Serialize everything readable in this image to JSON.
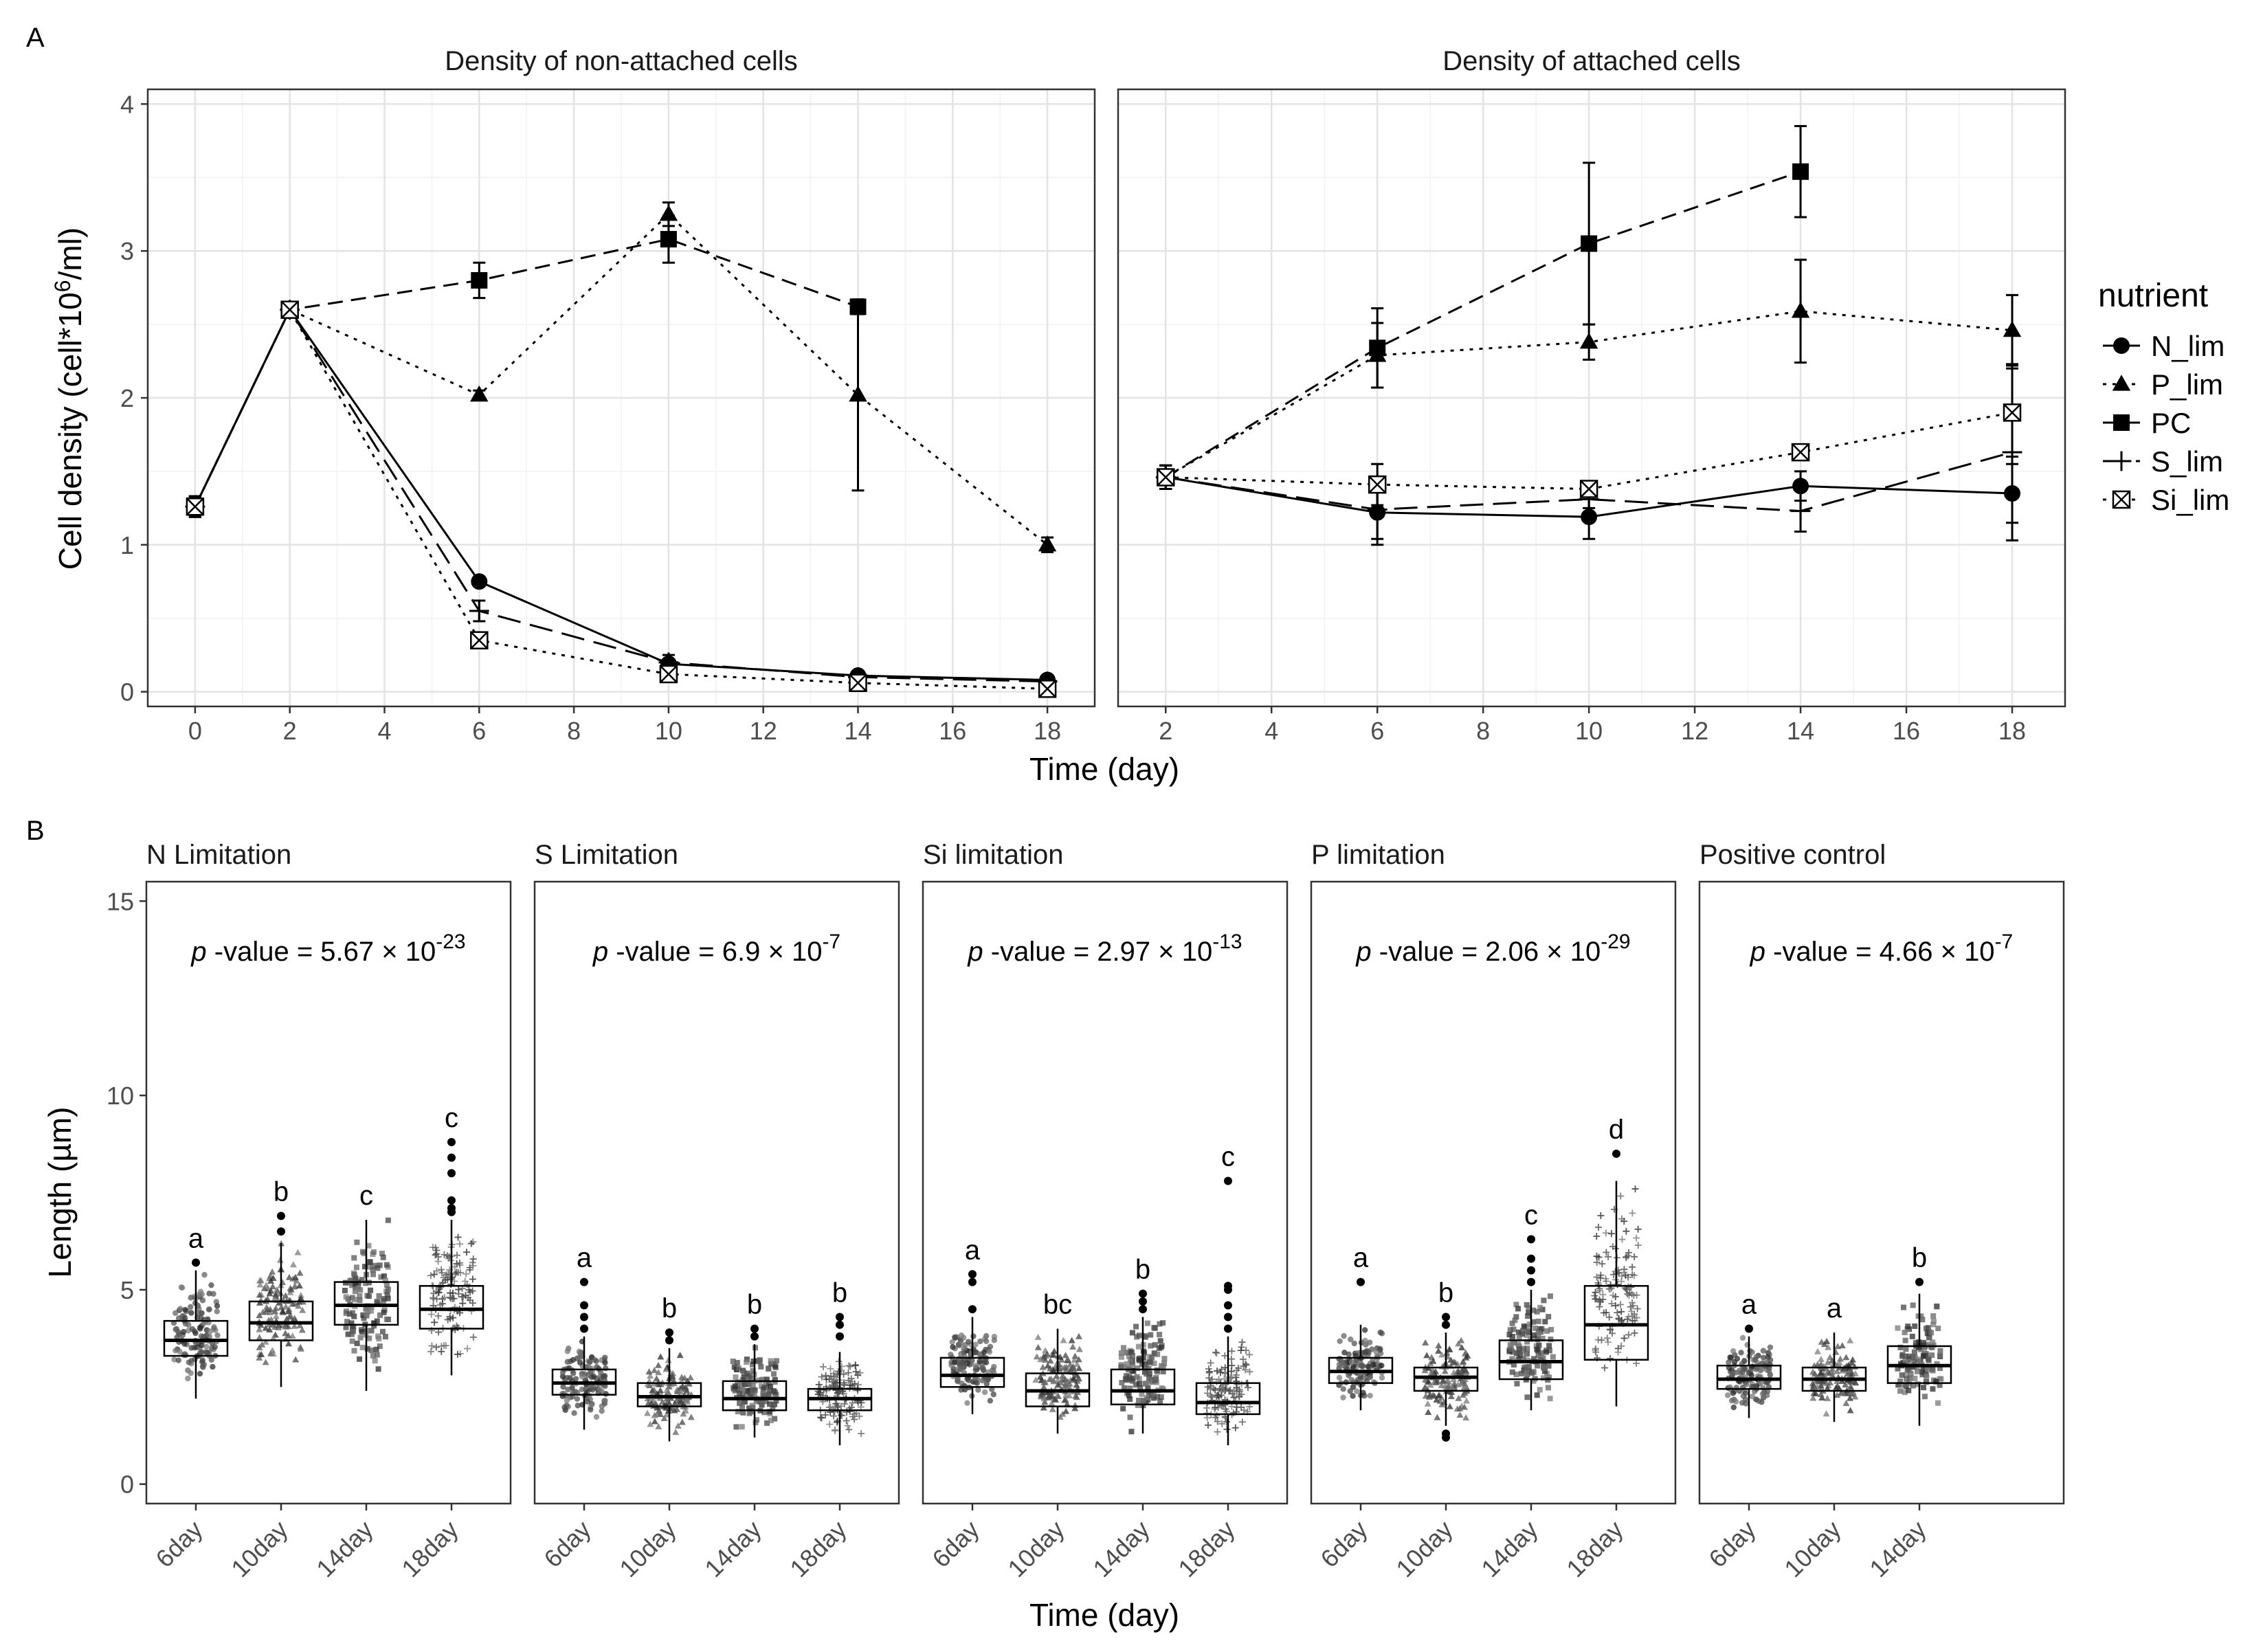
{
  "panels": {
    "a_label": "A",
    "b_label": "B"
  },
  "chart_data": [
    {
      "type": "line",
      "title": "Density of non-attached cells",
      "xlabel": "Time (day)",
      "ylabel": "Cell density (cell*10^6/ml)",
      "xlim": [
        -1,
        19
      ],
      "ylim": [
        -0.1,
        4.1
      ],
      "xticks": [
        0,
        2,
        4,
        6,
        8,
        10,
        12,
        14,
        16,
        18
      ],
      "yticks": [
        0,
        1,
        2,
        3,
        4
      ],
      "series": [
        {
          "name": "N_lim",
          "marker": "circle",
          "dash": "solid",
          "x": [
            0,
            2,
            6,
            10,
            14,
            18
          ],
          "y": [
            1.26,
            2.6,
            0.75,
            0.19,
            0.11,
            0.08
          ],
          "err": [
            0.07,
            0.02,
            0.03,
            0.03,
            0.02,
            0.02
          ]
        },
        {
          "name": "P_lim",
          "marker": "triangle",
          "dash": "dotted",
          "x": [
            0,
            2,
            6,
            10,
            14,
            18
          ],
          "y": [
            1.26,
            2.6,
            2.02,
            3.25,
            2.02,
            1.0
          ],
          "err": [
            0.07,
            0.02,
            0.03,
            0.08,
            0.65,
            0.05
          ]
        },
        {
          "name": "PC",
          "marker": "square",
          "dash": "dashed",
          "x": [
            0,
            2,
            6,
            10,
            14,
            18
          ],
          "y": [
            1.26,
            2.6,
            2.8,
            3.08,
            2.62,
            null
          ],
          "err": [
            0.07,
            0.02,
            0.12,
            0.16,
            0.05,
            0
          ]
        },
        {
          "name": "S_lim",
          "marker": "plus",
          "dash": "longdash",
          "x": [
            0,
            2,
            6,
            10,
            14,
            18
          ],
          "y": [
            1.26,
            2.6,
            0.55,
            0.2,
            0.1,
            0.07
          ],
          "err": [
            0.07,
            0.02,
            0.07,
            0.05,
            0.03,
            0.02
          ]
        },
        {
          "name": "Si_lim",
          "marker": "boxx",
          "dash": "dotted",
          "x": [
            0,
            2,
            6,
            10,
            14,
            18
          ],
          "y": [
            1.26,
            2.6,
            0.35,
            0.12,
            0.06,
            0.02
          ],
          "err": [
            0.07,
            0.02,
            0.03,
            0.05,
            0.02,
            0.02
          ]
        }
      ]
    },
    {
      "type": "line",
      "title": "Density of attached cells",
      "xlabel": "Time (day)",
      "ylabel": "Cell density (cell*10^6/ml)",
      "xlim": [
        1.1,
        19.0
      ],
      "ylim": [
        -0.1,
        4.1
      ],
      "xticks": [
        2,
        4,
        6,
        8,
        10,
        12,
        14,
        16,
        18
      ],
      "yticks": [
        0,
        1,
        2,
        3,
        4
      ],
      "series": [
        {
          "name": "N_lim",
          "marker": "circle",
          "dash": "solid",
          "x": [
            2,
            6,
            10,
            14,
            18
          ],
          "y": [
            1.46,
            1.22,
            1.19,
            1.4,
            1.35
          ],
          "err": [
            0.08,
            0.22,
            0.15,
            0.1,
            0.2
          ]
        },
        {
          "name": "P_lim",
          "marker": "triangle",
          "dash": "dotted",
          "x": [
            2,
            6,
            10,
            14,
            18
          ],
          "y": [
            1.46,
            2.29,
            2.38,
            2.59,
            2.46
          ],
          "err": [
            0.08,
            0.22,
            0.12,
            0.35,
            0.24
          ]
        },
        {
          "name": "PC",
          "marker": "square",
          "dash": "dashed",
          "x": [
            2,
            6,
            10,
            14,
            18
          ],
          "y": [
            1.46,
            2.34,
            3.05,
            3.54,
            null
          ],
          "err": [
            0.08,
            0.27,
            0.55,
            0.31,
            0
          ]
        },
        {
          "name": "S_lim",
          "marker": "plus",
          "dash": "longdash",
          "x": [
            2,
            6,
            10,
            14,
            18
          ],
          "y": [
            1.46,
            1.24,
            1.31,
            1.23,
            1.63
          ],
          "err": [
            0.08,
            0.2,
            0.06,
            0.14,
            0.6
          ]
        },
        {
          "name": "Si_lim",
          "marker": "boxx",
          "dash": "dotted",
          "x": [
            2,
            6,
            10,
            14,
            18
          ],
          "y": [
            1.46,
            1.41,
            1.38,
            1.63,
            1.9
          ],
          "err": [
            0.08,
            0.14,
            0.05,
            0.05,
            0.3
          ]
        }
      ]
    },
    {
      "type": "box",
      "xlabel": "Time (day)",
      "ylabel": "Length (µm)",
      "ylim": [
        -0.5,
        15.5
      ],
      "yticks": [
        0,
        5,
        10,
        15
      ],
      "facets": [
        {
          "title": "N Limitation",
          "p_base": "5.67 × 10",
          "p_exp": "-23",
          "groups": [
            {
              "label": "6day",
              "marker": "circle",
              "q1": 3.3,
              "median": 3.7,
              "q3": 4.2,
              "whisker_low": 2.2,
              "whisker_high": 5.5,
              "letter": "a",
              "outliers": [
                5.7
              ]
            },
            {
              "label": "10day",
              "marker": "triangle",
              "q1": 3.7,
              "median": 4.15,
              "q3": 4.7,
              "whisker_low": 2.5,
              "whisker_high": 6.2,
              "letter": "b",
              "outliers": [
                6.5,
                6.9
              ]
            },
            {
              "label": "14day",
              "marker": "square",
              "q1": 4.1,
              "median": 4.6,
              "q3": 5.2,
              "whisker_low": 2.4,
              "whisker_high": 6.8,
              "letter": "c",
              "outliers": []
            },
            {
              "label": "18day",
              "marker": "plus",
              "q1": 4.0,
              "median": 4.5,
              "q3": 5.1,
              "whisker_low": 2.8,
              "whisker_high": 6.8,
              "letter": "c",
              "outliers": [
                7.0,
                7.1,
                7.3,
                8.0,
                8.4,
                8.8
              ]
            }
          ]
        },
        {
          "title": "S Limitation",
          "p_base": "6.9 × 10",
          "p_exp": "-7",
          "groups": [
            {
              "label": "6day",
              "marker": "circle",
              "q1": 2.3,
              "median": 2.6,
              "q3": 2.95,
              "whisker_low": 1.4,
              "whisker_high": 3.8,
              "letter": "a",
              "outliers": [
                4.0,
                4.3,
                4.6,
                5.2
              ]
            },
            {
              "label": "10day",
              "marker": "triangle",
              "q1": 2.0,
              "median": 2.25,
              "q3": 2.6,
              "whisker_low": 1.1,
              "whisker_high": 3.5,
              "letter": "b",
              "outliers": [
                3.7,
                3.9
              ]
            },
            {
              "label": "14day",
              "marker": "square",
              "q1": 1.9,
              "median": 2.2,
              "q3": 2.65,
              "whisker_low": 1.2,
              "whisker_high": 3.6,
              "letter": "b",
              "outliers": [
                3.8,
                4.0
              ]
            },
            {
              "label": "18day",
              "marker": "plus",
              "q1": 1.9,
              "median": 2.2,
              "q3": 2.45,
              "whisker_low": 1.0,
              "whisker_high": 3.4,
              "letter": "b",
              "outliers": [
                3.8,
                4.1,
                4.3
              ]
            }
          ]
        },
        {
          "title": "Si limitation",
          "p_base": "2.97 × 10",
          "p_exp": "-13",
          "groups": [
            {
              "label": "6day",
              "marker": "circle",
              "q1": 2.5,
              "median": 2.8,
              "q3": 3.25,
              "whisker_low": 1.8,
              "whisker_high": 4.3,
              "letter": "a",
              "outliers": [
                4.5,
                5.2,
                5.4
              ]
            },
            {
              "label": "10day",
              "marker": "triangle",
              "q1": 2.0,
              "median": 2.4,
              "q3": 2.85,
              "whisker_low": 1.3,
              "whisker_high": 4.0,
              "letter": "bc",
              "outliers": []
            },
            {
              "label": "14day",
              "marker": "square",
              "q1": 2.05,
              "median": 2.4,
              "q3": 2.95,
              "whisker_low": 1.3,
              "whisker_high": 4.3,
              "letter": "b",
              "outliers": [
                4.5,
                4.7,
                4.9
              ]
            },
            {
              "label": "18day",
              "marker": "plus",
              "q1": 1.8,
              "median": 2.1,
              "q3": 2.6,
              "whisker_low": 1.0,
              "whisker_high": 3.8,
              "letter": "c",
              "outliers": [
                4.0,
                4.3,
                4.6,
                5.0,
                5.1,
                7.8
              ]
            }
          ]
        },
        {
          "title": "P limitation",
          "p_base": "2.06 × 10",
          "p_exp": "-29",
          "groups": [
            {
              "label": "6day",
              "marker": "circle",
              "q1": 2.6,
              "median": 2.9,
              "q3": 3.25,
              "whisker_low": 1.9,
              "whisker_high": 4.1,
              "letter": "a",
              "outliers": [
                5.2
              ]
            },
            {
              "label": "10day",
              "marker": "triangle",
              "q1": 2.4,
              "median": 2.75,
              "q3": 3.0,
              "whisker_low": 1.5,
              "whisker_high": 3.9,
              "letter": "b",
              "outliers": [
                1.3,
                1.2,
                4.1,
                4.3
              ]
            },
            {
              "label": "14day",
              "marker": "square",
              "q1": 2.7,
              "median": 3.15,
              "q3": 3.7,
              "whisker_low": 1.9,
              "whisker_high": 5.0,
              "letter": "c",
              "outliers": [
                5.2,
                5.5,
                5.8,
                6.3
              ]
            },
            {
              "label": "18day",
              "marker": "plus",
              "q1": 3.2,
              "median": 4.1,
              "q3": 5.1,
              "whisker_low": 2.0,
              "whisker_high": 7.8,
              "letter": "d",
              "outliers": [
                8.5
              ]
            }
          ]
        },
        {
          "title": "Positive control",
          "p_base": "4.66 × 10",
          "p_exp": "-7",
          "groups": [
            {
              "label": "6day",
              "marker": "circle",
              "q1": 2.45,
              "median": 2.7,
              "q3": 3.05,
              "whisker_low": 1.7,
              "whisker_high": 3.8,
              "letter": "a",
              "outliers": [
                4.0
              ]
            },
            {
              "label": "10day",
              "marker": "triangle",
              "q1": 2.4,
              "median": 2.7,
              "q3": 3.0,
              "whisker_low": 1.6,
              "whisker_high": 3.9,
              "letter": "a",
              "outliers": []
            },
            {
              "label": "14day",
              "marker": "square",
              "q1": 2.6,
              "median": 3.05,
              "q3": 3.55,
              "whisker_low": 1.5,
              "whisker_high": 4.9,
              "letter": "b",
              "outliers": [
                5.2
              ]
            }
          ]
        }
      ]
    }
  ],
  "legend": {
    "title": "nutrient",
    "entries": [
      "N_lim",
      "P_lim",
      "PC",
      "S_lim",
      "Si_lim"
    ]
  },
  "labels": {
    "ylabel_a_main": "Cell density (cell*10",
    "ylabel_a_sup": "6",
    "ylabel_a_end": "/ml)",
    "p_prefix": "p",
    "p_mid": "-value = "
  }
}
